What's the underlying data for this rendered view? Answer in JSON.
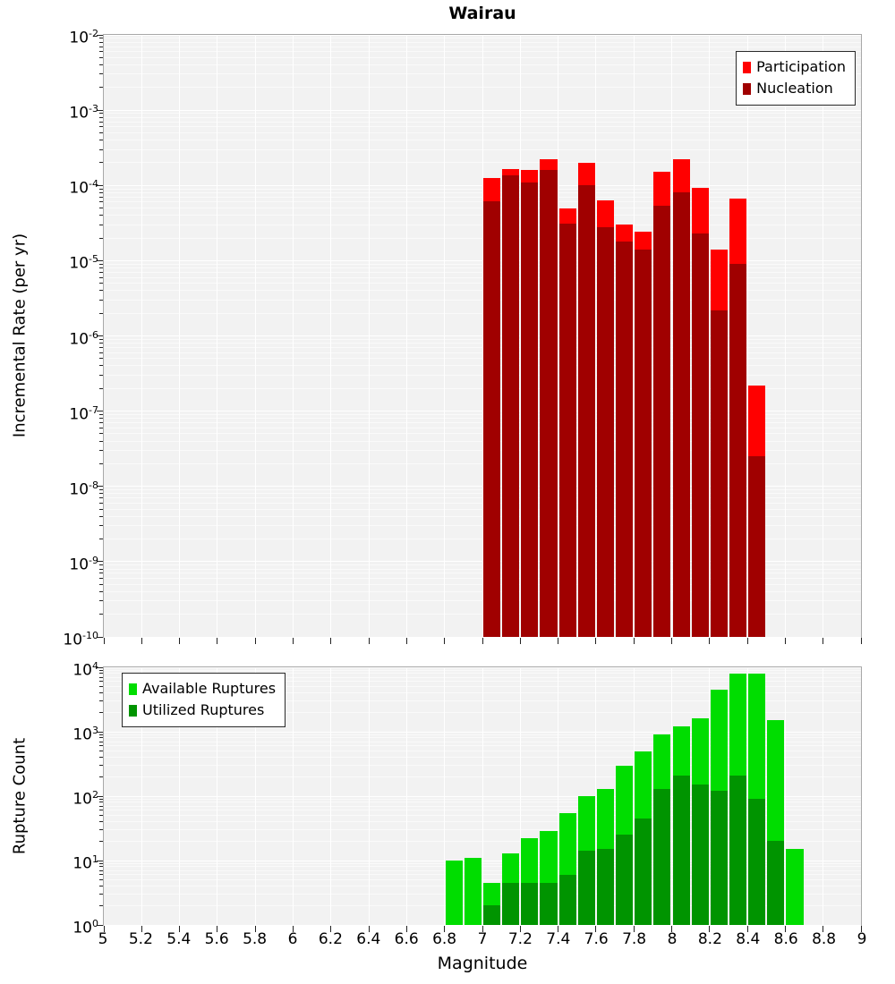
{
  "title": "Wairau",
  "axes": {
    "x_label": "Magnitude",
    "top_y_label": "Incremental Rate (per yr)",
    "bottom_y_label": "Rupture Count"
  },
  "x_ticks": {
    "values": [
      5,
      5.2,
      5.4,
      5.6,
      5.8,
      6,
      6.2,
      6.4,
      6.6,
      6.8,
      7,
      7.2,
      7.4,
      7.6,
      7.8,
      8,
      8.2,
      8.4,
      8.6,
      8.8,
      9
    ],
    "labels": [
      "5",
      "5.2",
      "5.4",
      "5.6",
      "5.8",
      "6",
      "6.2",
      "6.4",
      "6.6",
      "6.8",
      "7",
      "7.2",
      "7.4",
      "7.6",
      "7.8",
      "8",
      "8.2",
      "8.4",
      "8.6",
      "8.8",
      "9"
    ]
  },
  "chart_data": [
    {
      "type": "bar",
      "title": "Wairau",
      "ylabel": "Incremental Rate (per yr)",
      "xlabel": "Magnitude",
      "yscale": "log",
      "ylim": [
        1e-10,
        0.01
      ],
      "xlim": [
        5,
        9
      ],
      "grid": true,
      "y_tick_exponents": [
        -2,
        -3,
        -4,
        -5,
        -6,
        -7,
        -8,
        -9,
        -10
      ],
      "bar_width": 0.1,
      "x": [
        7.0,
        7.1,
        7.2,
        7.3,
        7.4,
        7.5,
        7.6,
        7.7,
        7.8,
        7.9,
        8.0,
        8.1,
        8.2,
        8.3,
        8.4
      ],
      "series": [
        {
          "name": "Participation",
          "color": "#ff0000",
          "values": [
            0.000125,
            0.000165,
            0.00016,
            0.00022,
            5e-05,
            0.0002,
            6.3e-05,
            3e-05,
            2.4e-05,
            0.00015,
            0.00022,
            9.4e-05,
            1.4e-05,
            6.6e-05,
            2.2e-07
          ]
        },
        {
          "name": "Nucleation",
          "color": "#a00000",
          "values": [
            6.1e-05,
            0.000135,
            0.00011,
            0.00016,
            3.1e-05,
            0.0001,
            2.8e-05,
            1.8e-05,
            1.4e-05,
            5.3e-05,
            8.2e-05,
            2.3e-05,
            2.2e-06,
            9e-06,
            2.5e-08
          ]
        }
      ],
      "legend": {
        "position": "top-right",
        "items": [
          "Participation",
          "Nucleation"
        ]
      }
    },
    {
      "type": "bar",
      "ylabel": "Rupture Count",
      "xlabel": "Magnitude",
      "yscale": "log",
      "ylim": [
        1,
        10000
      ],
      "xlim": [
        5,
        9
      ],
      "grid": true,
      "y_tick_exponents": [
        4,
        3,
        2,
        1,
        0
      ],
      "bar_width": 0.1,
      "x": [
        6.8,
        6.9,
        7.0,
        7.1,
        7.2,
        7.3,
        7.4,
        7.5,
        7.6,
        7.7,
        7.8,
        7.9,
        8.0,
        8.1,
        8.2,
        8.3,
        8.4,
        8.5,
        8.6
      ],
      "series": [
        {
          "name": "Available Ruptures",
          "color": "#00dd00",
          "values": [
            10,
            11,
            4.5,
            13,
            22,
            29,
            55,
            100,
            130,
            300,
            500,
            900,
            1200,
            1600,
            4500,
            8000,
            8000,
            1500,
            15
          ]
        },
        {
          "name": "Utilized Ruptures",
          "color": "#009400",
          "values": [
            0,
            0,
            2,
            4.5,
            4.5,
            4.5,
            6,
            14,
            15,
            25,
            45,
            130,
            210,
            150,
            120,
            210,
            90,
            20,
            0
          ]
        }
      ],
      "legend": {
        "position": "top-left",
        "items": [
          "Available Ruptures",
          "Utilized Ruptures"
        ]
      }
    }
  ]
}
